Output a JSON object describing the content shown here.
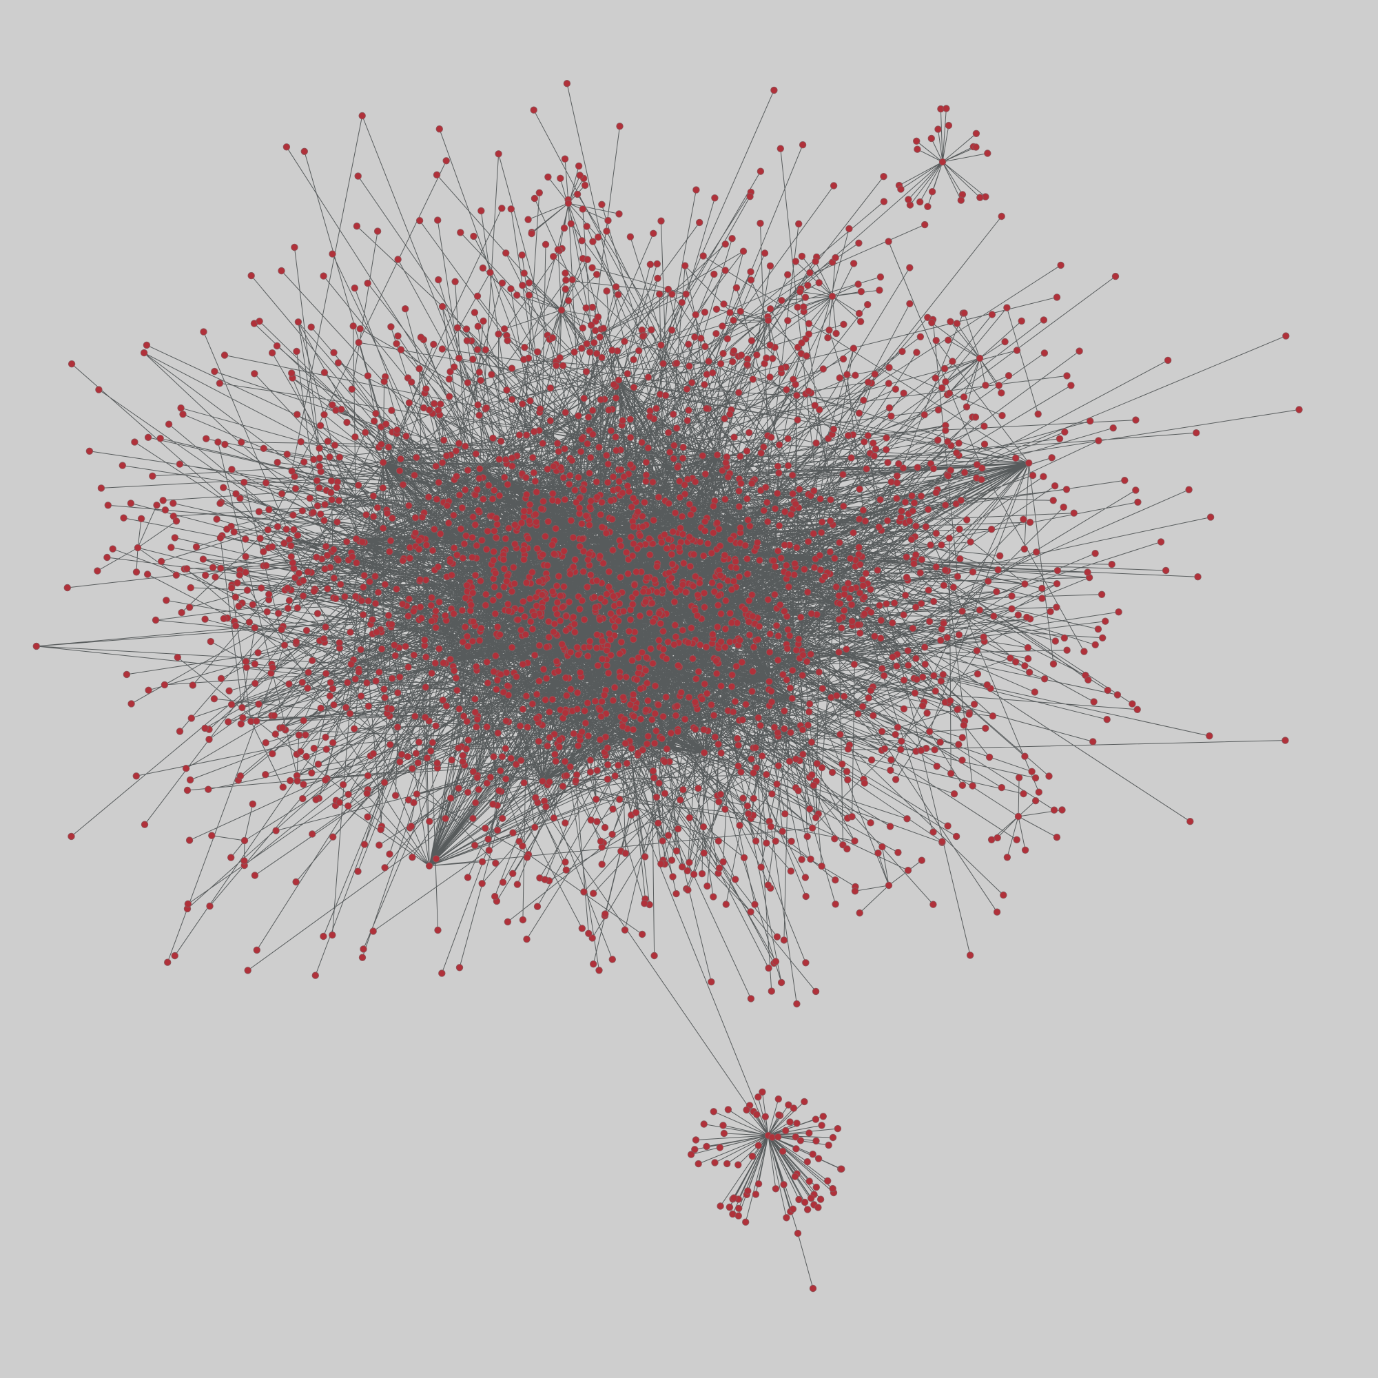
{
  "colors": {
    "background": "#cecece",
    "node_fill": "#b0313a",
    "node_stroke": "#8a5a5e",
    "edge": "#3a3f40"
  }
}
